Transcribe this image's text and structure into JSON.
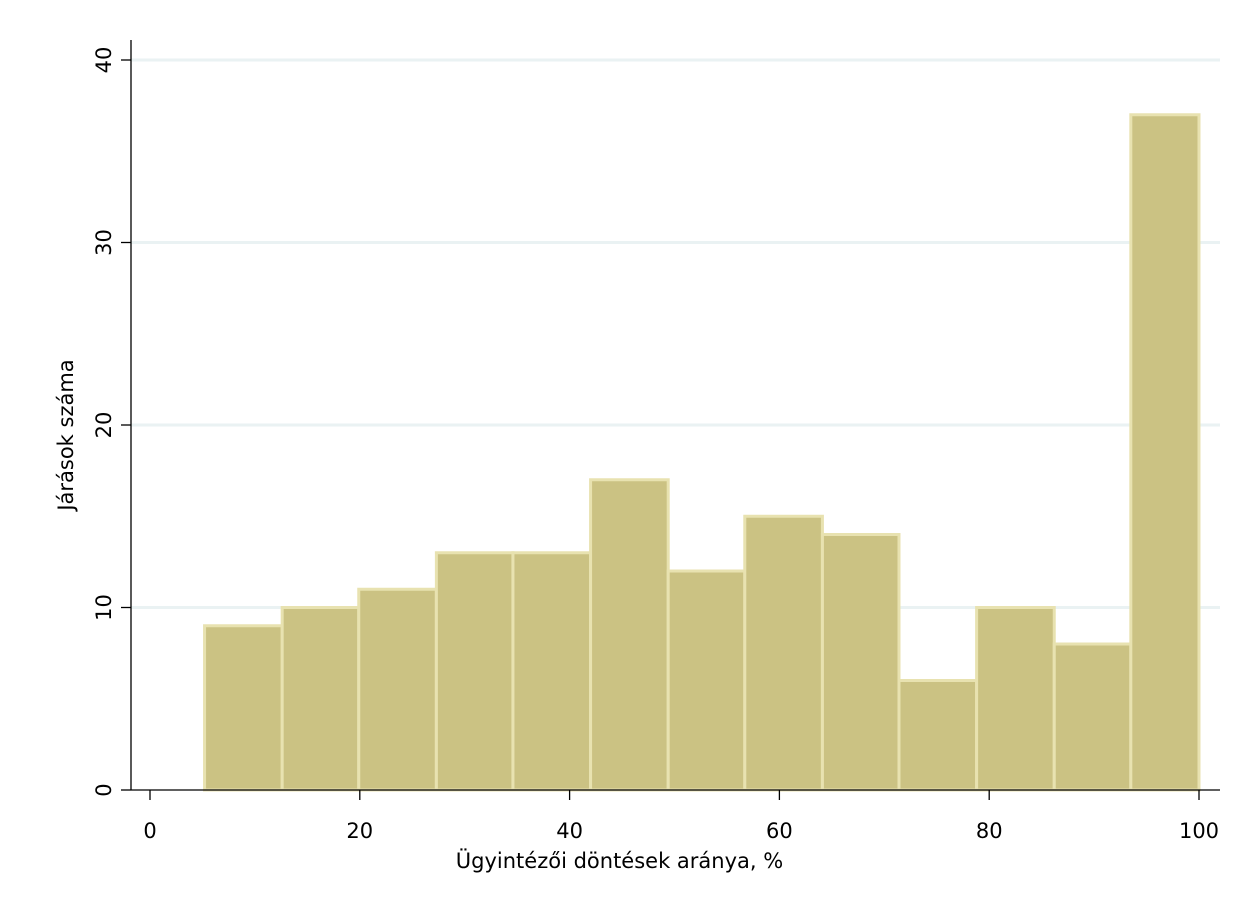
{
  "chart_data": {
    "type": "bar",
    "subtype": "histogram",
    "xlabel": "Ügyintézői döntések aránya, %",
    "ylabel": "Járások száma",
    "xlim": [
      0,
      100
    ],
    "ylim": [
      0,
      40
    ],
    "xticks": [
      0,
      20,
      40,
      60,
      80,
      100
    ],
    "yticks": [
      0,
      10,
      20,
      30,
      40
    ],
    "grid": true,
    "grid_axis": "y",
    "bins": [
      {
        "x0": 5.2,
        "x1": 12.6,
        "value": 9
      },
      {
        "x0": 12.6,
        "x1": 19.9,
        "value": 10
      },
      {
        "x0": 19.9,
        "x1": 27.3,
        "value": 11
      },
      {
        "x0": 27.3,
        "x1": 34.6,
        "value": 13
      },
      {
        "x0": 34.6,
        "x1": 42.0,
        "value": 13
      },
      {
        "x0": 42.0,
        "x1": 49.4,
        "value": 17
      },
      {
        "x0": 49.4,
        "x1": 56.7,
        "value": 12
      },
      {
        "x0": 56.7,
        "x1": 64.1,
        "value": 15
      },
      {
        "x0": 64.1,
        "x1": 71.4,
        "value": 14
      },
      {
        "x0": 71.4,
        "x1": 78.8,
        "value": 6
      },
      {
        "x0": 78.8,
        "x1": 86.2,
        "value": 10
      },
      {
        "x0": 86.2,
        "x1": 93.5,
        "value": 8
      },
      {
        "x0": 93.5,
        "x1": 100.0,
        "value": 37
      }
    ],
    "colors": {
      "bar_fill": "#cbc283",
      "bar_edge": "#e8e2b0",
      "grid": "#eaf2f3",
      "axis": "#000000"
    }
  }
}
